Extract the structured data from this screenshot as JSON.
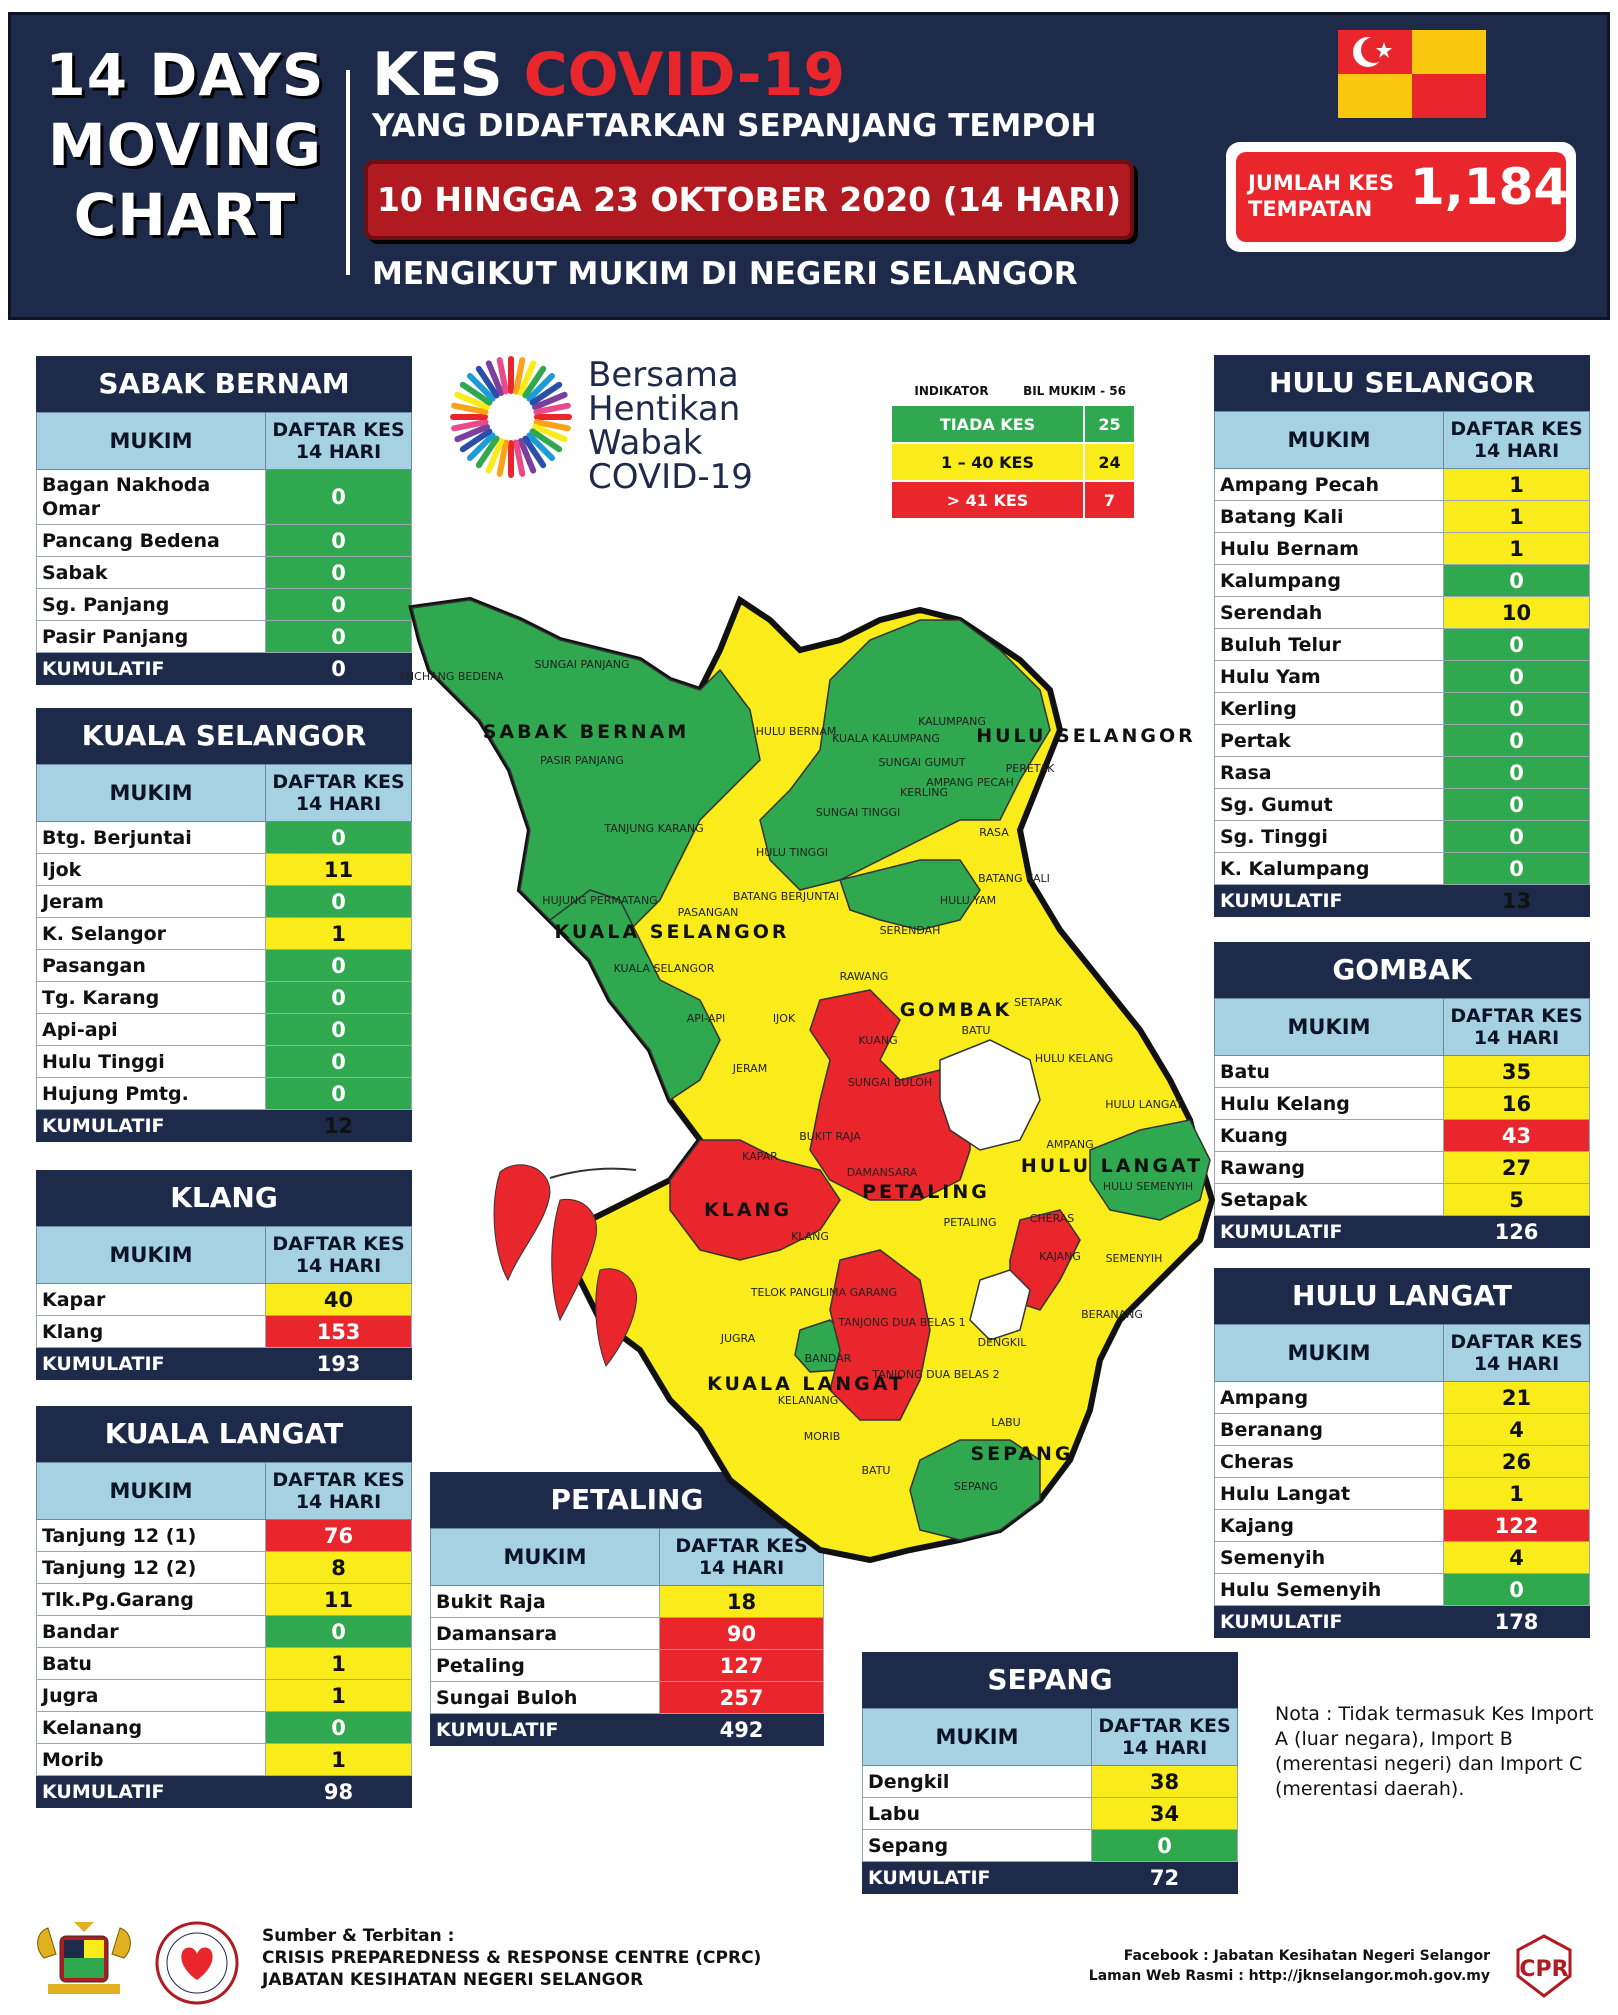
{
  "header": {
    "moving_chart_lines": [
      "14 DAYS",
      "MOVING",
      "CHART"
    ],
    "kes": "KES",
    "covid": "COVID-19",
    "subtitle1": "YANG DIDAFTARKAN SEPANJANG TEMPOH",
    "date_range": "10 HINGGA 23 OKTOBER 2020 (14 HARI)",
    "subtitle2": "MENGIKUT MUKIM DI NEGERI SELANGOR",
    "jumlah_label_lines": [
      "JUMLAH KES",
      "TEMPATAN"
    ],
    "jumlah_value": "1,184"
  },
  "colors": {
    "navy": "#1d2a4a",
    "green": "#2fa84f",
    "yellow": "#f9ec1a",
    "red": "#e8262b"
  },
  "logo": {
    "lines": [
      "Bersama",
      "Hentikan",
      "Wabak",
      "COVID-19"
    ]
  },
  "indicator": {
    "headers": [
      "INDIKATOR",
      "BIL MUKIM - 56"
    ],
    "rows": [
      {
        "label": "TIADA KES",
        "value": "25",
        "color": "g"
      },
      {
        "label": "1 – 40 KES",
        "value": "24",
        "color": "y"
      },
      {
        "label": "> 41 KES",
        "value": "7",
        "color": "r"
      }
    ]
  },
  "table_headers": {
    "mukim": "MUKIM",
    "daftar": [
      "DAFTAR KES",
      "14 HARI"
    ],
    "kumulatif": "KUMULATIF"
  },
  "districts": {
    "sabak_bernam": {
      "title": "SABAK BERNAM",
      "rows": [
        {
          "name": "Bagan Nakhoda Omar",
          "value": "0",
          "color": "g",
          "tall": true
        },
        {
          "name": "Pancang Bedena",
          "value": "0",
          "color": "g"
        },
        {
          "name": "Sabak",
          "value": "0",
          "color": "g"
        },
        {
          "name": "Sg. Panjang",
          "value": "0",
          "color": "g"
        },
        {
          "name": "Pasir Panjang",
          "value": "0",
          "color": "g"
        }
      ],
      "kumulatif": "0",
      "kum_color": "g"
    },
    "kuala_selangor": {
      "title": "KUALA SELANGOR",
      "rows": [
        {
          "name": "Btg. Berjuntai",
          "value": "0",
          "color": "g"
        },
        {
          "name": "Ijok",
          "value": "11",
          "color": "y"
        },
        {
          "name": "Jeram",
          "value": "0",
          "color": "g"
        },
        {
          "name": "K. Selangor",
          "value": "1",
          "color": "y"
        },
        {
          "name": "Pasangan",
          "value": "0",
          "color": "g"
        },
        {
          "name": "Tg. Karang",
          "value": "0",
          "color": "g"
        },
        {
          "name": "Api-api",
          "value": "0",
          "color": "g"
        },
        {
          "name": "Hulu Tinggi",
          "value": "0",
          "color": "g"
        },
        {
          "name": "Hujung Pmtg.",
          "value": "0",
          "color": "g"
        }
      ],
      "kumulatif": "12",
      "kum_color": "y"
    },
    "klang": {
      "title": "KLANG",
      "rows": [
        {
          "name": "Kapar",
          "value": "40",
          "color": "y"
        },
        {
          "name": "Klang",
          "value": "153",
          "color": "r"
        }
      ],
      "kumulatif": "193",
      "kum_color": "r"
    },
    "kuala_langat": {
      "title": "KUALA LANGAT",
      "rows": [
        {
          "name": "Tanjung 12 (1)",
          "value": "76",
          "color": "r"
        },
        {
          "name": "Tanjung 12 (2)",
          "value": "8",
          "color": "y"
        },
        {
          "name": "Tlk.Pg.Garang",
          "value": "11",
          "color": "y"
        },
        {
          "name": "Bandar",
          "value": "0",
          "color": "g"
        },
        {
          "name": "Batu",
          "value": "1",
          "color": "y"
        },
        {
          "name": "Jugra",
          "value": "1",
          "color": "y"
        },
        {
          "name": "Kelanang",
          "value": "0",
          "color": "g"
        },
        {
          "name": "Morib",
          "value": "1",
          "color": "y"
        }
      ],
      "kumulatif": "98",
      "kum_color": "r"
    },
    "petaling": {
      "title": "PETALING",
      "rows": [
        {
          "name": "Bukit Raja",
          "value": "18",
          "color": "y"
        },
        {
          "name": "Damansara",
          "value": "90",
          "color": "r"
        },
        {
          "name": "Petaling",
          "value": "127",
          "color": "r"
        },
        {
          "name": "Sungai Buloh",
          "value": "257",
          "color": "r"
        }
      ],
      "kumulatif": "492",
      "kum_color": "r"
    },
    "sepang": {
      "title": "SEPANG",
      "rows": [
        {
          "name": "Dengkil",
          "value": "38",
          "color": "y"
        },
        {
          "name": "Labu",
          "value": "34",
          "color": "y"
        },
        {
          "name": "Sepang",
          "value": "0",
          "color": "g"
        }
      ],
      "kumulatif": "72",
      "kum_color": "r"
    },
    "hulu_selangor": {
      "title": "HULU SELANGOR",
      "rows": [
        {
          "name": "Ampang Pecah",
          "value": "1",
          "color": "y"
        },
        {
          "name": "Batang Kali",
          "value": "1",
          "color": "y"
        },
        {
          "name": "Hulu Bernam",
          "value": "1",
          "color": "y"
        },
        {
          "name": "Kalumpang",
          "value": "0",
          "color": "g"
        },
        {
          "name": "Serendah",
          "value": "10",
          "color": "y"
        },
        {
          "name": "Buluh Telur",
          "value": "0",
          "color": "g"
        },
        {
          "name": "Hulu Yam",
          "value": "0",
          "color": "g"
        },
        {
          "name": "Kerling",
          "value": "0",
          "color": "g"
        },
        {
          "name": "Pertak",
          "value": "0",
          "color": "g"
        },
        {
          "name": "Rasa",
          "value": "0",
          "color": "g"
        },
        {
          "name": "Sg. Gumut",
          "value": "0",
          "color": "g"
        },
        {
          "name": "Sg. Tinggi",
          "value": "0",
          "color": "g"
        },
        {
          "name": "K. Kalumpang",
          "value": "0",
          "color": "g"
        }
      ],
      "kumulatif": "13",
      "kum_color": "y"
    },
    "gombak": {
      "title": "GOMBAK",
      "rows": [
        {
          "name": "Batu",
          "value": "35",
          "color": "y"
        },
        {
          "name": "Hulu Kelang",
          "value": "16",
          "color": "y"
        },
        {
          "name": "Kuang",
          "value": "43",
          "color": "r"
        },
        {
          "name": "Rawang",
          "value": "27",
          "color": "y"
        },
        {
          "name": "Setapak",
          "value": "5",
          "color": "y"
        }
      ],
      "kumulatif": "126",
      "kum_color": "r"
    },
    "hulu_langat": {
      "title": "HULU LANGAT",
      "rows": [
        {
          "name": "Ampang",
          "value": "21",
          "color": "y"
        },
        {
          "name": "Beranang",
          "value": "4",
          "color": "y"
        },
        {
          "name": "Cheras",
          "value": "26",
          "color": "y"
        },
        {
          "name": "Hulu Langat",
          "value": "1",
          "color": "y"
        },
        {
          "name": "Kajang",
          "value": "122",
          "color": "r"
        },
        {
          "name": "Semenyih",
          "value": "4",
          "color": "y"
        },
        {
          "name": "Hulu Semenyih",
          "value": "0",
          "color": "g"
        }
      ],
      "kumulatif": "178",
      "kum_color": "r"
    }
  },
  "map": {
    "district_labels": {
      "sabak_bernam": "SABAK BERNAM",
      "hulu_selangor": "HULU SELANGOR",
      "kuala_selangor": "KUALA SELANGOR",
      "gombak": "GOMBAK",
      "petaling": "PETALING",
      "hulu_langat": "HULU LANGAT",
      "klang": "KLANG",
      "kuala_langat": "KUALA LANGAT",
      "sepang": "SEPANG"
    },
    "mukim_labels": {
      "panchang_bedena": "PANCHANG BEDENA",
      "sungai_panjang": "SUNGAI PANJANG",
      "pasir_panjang": "PASIR PANJANG",
      "hulu_bernam": "HULU BERNAM",
      "kalumpang": "KALUMPANG",
      "kuala_kalumpang": "KUALA KALUMPANG",
      "sungai_gumut": "SUNGAI GUMUT",
      "kerling": "KERLING",
      "ampang_pecah": "AMPANG PECAH",
      "peretak": "PERETAK",
      "sungai_tinggi": "SUNGAI TINGGI",
      "rasa": "RASA",
      "tanjung_karang": "TANJUNG KARANG",
      "hulu_tinggi": "HULU TINGGI",
      "batang_kali": "BATANG KALI",
      "hulu_yam": "HULU YAM",
      "hujung_permatang": "HUJUNG PERMATANG",
      "pasangan": "PASANGAN",
      "batang_berjuntai": "BATANG BERJUNTAI",
      "serendah": "SERENDAH",
      "kuala_selangor": "KUALA SELANGOR",
      "rawang": "RAWANG",
      "setapak": "SETAPAK",
      "api_api": "API-API",
      "ijok": "IJOK",
      "kuang": "KUANG",
      "batu": "BATU",
      "hulu_kelang": "HULU KELANG",
      "jeram": "JERAM",
      "sungai_buloh": "SUNGAI BULOH",
      "hulu_langat": "HULU LANGAT",
      "bukit_raja": "BUKIT RAJA",
      "kapar": "KAPAR",
      "damansara": "DAMANSARA",
      "ampang": "AMPANG",
      "hulu_semenyih": "HULU SEMENYIH",
      "petaling": "PETALING",
      "cheras": "CHERAS",
      "klang": "KLANG",
      "kajang": "KAJANG",
      "semenyih": "SEMENYIH",
      "telok_panglima_garang": "TELOK PANGLIMA GARANG",
      "tanjong_dua_belas_1": "TANJONG DUA BELAS 1",
      "beranang": "BERANANG",
      "jugra": "JUGRA",
      "dengkil": "DENGKIL",
      "bandar": "BANDAR",
      "tanjong_dua_belas_2": "TANJONG DUA BELAS 2",
      "kelanang": "KELANANG",
      "morib": "MORIB",
      "labu": "LABU",
      "batu_kl": "BATU",
      "sepang": "SEPANG"
    }
  },
  "nota": "Nota : Tidak termasuk Kes Import A (luar negara), Import B (merentasi negeri) dan Import C (merentasi daerah).",
  "footer": {
    "sumber_lines": [
      "Sumber & Terbitan :",
      "CRISIS PREPAREDNESS & RESPONSE CENTRE (CPRC)",
      "JABATAN KESIHATAN NEGERI SELANGOR"
    ],
    "facebook": "Facebook : Jabatan Kesihatan Negeri Selangor",
    "laman": "Laman Web Rasmi : http://jknselangor.moh.gov.my",
    "cprc_text": "CPR"
  }
}
